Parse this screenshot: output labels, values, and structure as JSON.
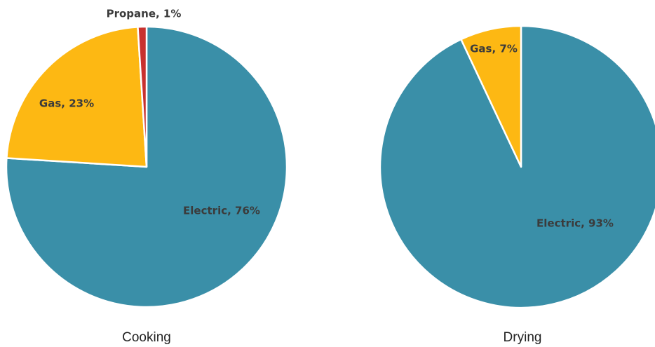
{
  "chart_data": [
    {
      "type": "pie",
      "title": "Cooking",
      "slices": [
        {
          "name": "Electric",
          "value": 76,
          "label": "Electric, 76%",
          "color": "#3a8fa8"
        },
        {
          "name": "Gas",
          "value": 23,
          "label": "Gas, 23%",
          "color": "#fdb813"
        },
        {
          "name": "Propane",
          "value": 1,
          "label": "Propane, 1%",
          "color": "#c8312e"
        }
      ]
    },
    {
      "type": "pie",
      "title": "Drying",
      "slices": [
        {
          "name": "Electric",
          "value": 93,
          "label": "Electric, 93%",
          "color": "#3a8fa8"
        },
        {
          "name": "Gas",
          "value": 7,
          "label": "Gas, 7%",
          "color": "#fdb813"
        }
      ]
    }
  ]
}
